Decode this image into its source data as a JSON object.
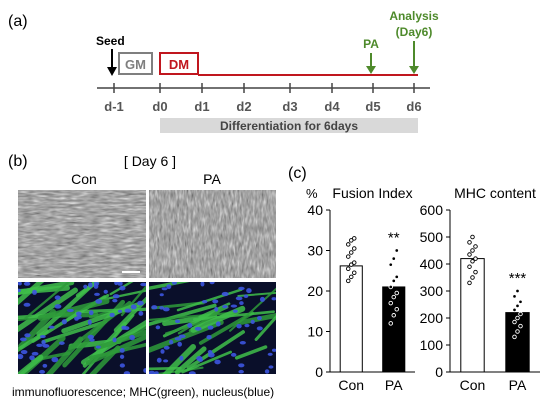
{
  "panel_a": {
    "label": "(a)",
    "seed": "Seed",
    "gm": "GM",
    "dm": "DM",
    "pa": "PA",
    "analysis_line1": "Analysis",
    "analysis_line2": "(Day6)",
    "days": [
      "d-1",
      "d0",
      "d1",
      "d2",
      "d3",
      "d4",
      "d5",
      "d6"
    ],
    "differentiation": "Differentiation for 6days",
    "colors": {
      "gm": "#7f7f7f",
      "dm": "#c0161e",
      "pa": "#4e8a2b",
      "shade": "#d9d9d9"
    }
  },
  "panel_b": {
    "label": "(b)",
    "title": "[ Day 6 ]",
    "con": "Con",
    "pa": "PA",
    "caption": "immunofluorescence; MHC(green), nucleus(blue)"
  },
  "panel_c": {
    "label": "(c)",
    "percent": "%"
  },
  "chart_data": [
    {
      "type": "bar",
      "title": "Fusion Index",
      "ylabel": "%",
      "categories": [
        "Con",
        "PA"
      ],
      "values": [
        26.2,
        21.0
      ],
      "ylim": [
        0,
        40
      ],
      "yticks": [
        0,
        10,
        20,
        30,
        40
      ],
      "bar_colors": [
        "#ffffff",
        "#000000"
      ],
      "significance": [
        "",
        "**"
      ],
      "points": [
        [
          22.5,
          23.5,
          24.5,
          25.5,
          26.5,
          27.0,
          28.5,
          29.5,
          30.5,
          31.5,
          32.5,
          33.0
        ],
        [
          12.0,
          14.0,
          15.5,
          17.0,
          18.5,
          19.5,
          21.0,
          22.5,
          23.5,
          26.5,
          28.0,
          30.0
        ]
      ]
    },
    {
      "type": "bar",
      "title": "MHC content",
      "categories": [
        "Con",
        "PA"
      ],
      "values": [
        420,
        220
      ],
      "ylim": [
        0,
        600
      ],
      "yticks": [
        0,
        100,
        200,
        300,
        400,
        500,
        600
      ],
      "bar_colors": [
        "#ffffff",
        "#000000"
      ],
      "significance": [
        "",
        "***"
      ],
      "points": [
        [
          330,
          350,
          370,
          390,
          410,
          420,
          435,
          450,
          465,
          480,
          500
        ],
        [
          130,
          150,
          170,
          185,
          200,
          215,
          230,
          245,
          260,
          280,
          300
        ]
      ]
    }
  ]
}
